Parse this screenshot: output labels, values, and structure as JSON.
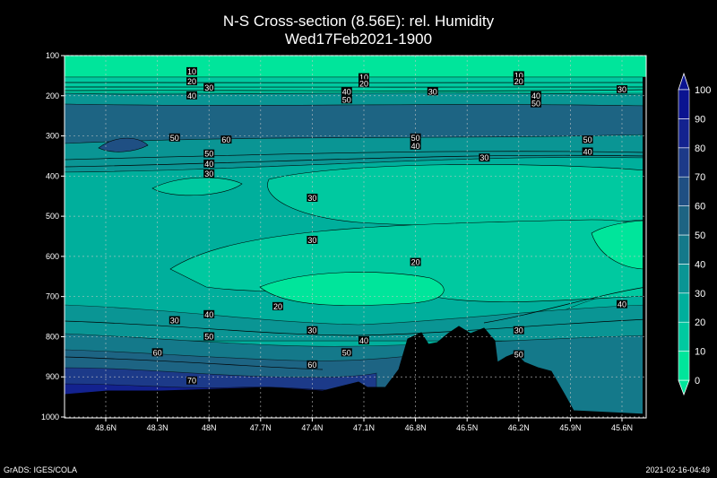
{
  "title_line1": "N-S Cross-section (8.56E): rel. Humidity",
  "title_line2": "Wed17Feb2021-1900",
  "footer_left": "GrADS: IGES/COLA",
  "footer_right": "2021-02-16-04:49",
  "chart_data": {
    "type": "contour",
    "title": "N-S Cross-section (8.56E): rel. Humidity",
    "subtitle": "Wed17Feb2021-1900",
    "variable": "rel. Humidity",
    "xlabel": "",
    "ylabel": "",
    "x_ticks": [
      "48.6N",
      "48.3N",
      "48N",
      "47.7N",
      "47.4N",
      "47.1N",
      "46.8N",
      "46.5N",
      "46.2N",
      "45.9N",
      "45.6N"
    ],
    "y_ticks": [
      "100",
      "200",
      "300",
      "400",
      "500",
      "600",
      "700",
      "800",
      "900",
      "1000"
    ],
    "ylim": [
      1000,
      100
    ],
    "grid": true,
    "colorbar": {
      "levels": [
        "0",
        "10",
        "20",
        "30",
        "40",
        "50",
        "60",
        "70",
        "80",
        "90",
        "100"
      ],
      "colors": [
        "#00e59b",
        "#00c9a0",
        "#00af9c",
        "#0a9594",
        "#14798a",
        "#1d6483",
        "#1f4f83",
        "#1c3a89",
        "#13228f",
        "#0a1390"
      ]
    },
    "contour_labels": [
      {
        "x": "48.1N",
        "p": 140,
        "label": "10"
      },
      {
        "x": "48.1N",
        "p": 165,
        "label": "20"
      },
      {
        "x": "48.0N",
        "p": 180,
        "label": "30"
      },
      {
        "x": "48.1N",
        "p": 200,
        "label": "40"
      },
      {
        "x": "47.1N",
        "p": 155,
        "label": "10"
      },
      {
        "x": "47.1N",
        "p": 170,
        "label": "20"
      },
      {
        "x": "47.2N",
        "p": 190,
        "label": "40"
      },
      {
        "x": "47.2N",
        "p": 210,
        "label": "50"
      },
      {
        "x": "46.7N",
        "p": 190,
        "label": "30"
      },
      {
        "x": "46.2N",
        "p": 150,
        "label": "10"
      },
      {
        "x": "46.2N",
        "p": 165,
        "label": "20"
      },
      {
        "x": "46.1N",
        "p": 200,
        "label": "40"
      },
      {
        "x": "46.1N",
        "p": 220,
        "label": "50"
      },
      {
        "x": "45.6N",
        "p": 185,
        "label": "30"
      },
      {
        "x": "48.2N",
        "p": 305,
        "label": "50"
      },
      {
        "x": "47.9N",
        "p": 310,
        "label": "60"
      },
      {
        "x": "48.0N",
        "p": 345,
        "label": "50"
      },
      {
        "x": "48.0N",
        "p": 370,
        "label": "40"
      },
      {
        "x": "48.0N",
        "p": 395,
        "label": "30"
      },
      {
        "x": "46.8N",
        "p": 305,
        "label": "50"
      },
      {
        "x": "46.8N",
        "p": 325,
        "label": "40"
      },
      {
        "x": "46.4N",
        "p": 355,
        "label": "30"
      },
      {
        "x": "45.8N",
        "p": 310,
        "label": "50"
      },
      {
        "x": "45.8N",
        "p": 340,
        "label": "40"
      },
      {
        "x": "47.4N",
        "p": 455,
        "label": "30"
      },
      {
        "x": "47.4N",
        "p": 560,
        "label": "30"
      },
      {
        "x": "46.8N",
        "p": 615,
        "label": "20"
      },
      {
        "x": "47.6N",
        "p": 725,
        "label": "20"
      },
      {
        "x": "48.2N",
        "p": 760,
        "label": "30"
      },
      {
        "x": "48.0N",
        "p": 745,
        "label": "40"
      },
      {
        "x": "48.0N",
        "p": 800,
        "label": "50"
      },
      {
        "x": "47.4N",
        "p": 785,
        "label": "30"
      },
      {
        "x": "47.1N",
        "p": 810,
        "label": "40"
      },
      {
        "x": "47.2N",
        "p": 840,
        "label": "50"
      },
      {
        "x": "48.3N",
        "p": 840,
        "label": "60"
      },
      {
        "x": "47.4N",
        "p": 870,
        "label": "60"
      },
      {
        "x": "48.1N",
        "p": 910,
        "label": "70"
      },
      {
        "x": "46.2N",
        "p": 785,
        "label": "30"
      },
      {
        "x": "46.2N",
        "p": 845,
        "label": "50"
      },
      {
        "x": "45.6N",
        "p": 720,
        "label": "40"
      }
    ]
  }
}
